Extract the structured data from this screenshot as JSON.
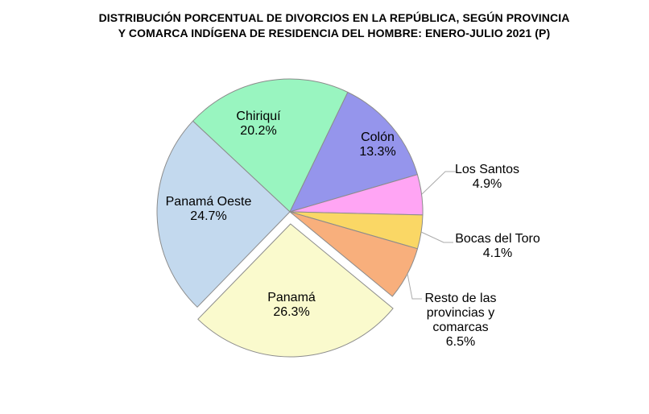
{
  "title": {
    "line1": "DISTRIBUCIÓN PORCENTUAL DE DIVORCIOS EN LA REPÚBLICA, SEGÚN PROVINCIA",
    "line2": "Y COMARCA INDÍGENA DE RESIDENCIA DEL HOMBRE: ENERO-JULIO 2021 (P)"
  },
  "chart_data": {
    "type": "pie",
    "title": "DISTRIBUCIÓN PORCENTUAL DE DIVORCIOS EN LA REPÚBLICA, SEGÚN PROVINCIA Y COMARCA INDÍGENA DE RESIDENCIA DEL HOMBRE: ENERO-JULIO 2021 (P)",
    "unit": "%",
    "total": 100,
    "start_angle_deg": 136.9,
    "direction": "clockwise",
    "legend": "none",
    "slices": [
      {
        "label": "Chiriquí",
        "value": 20.2,
        "pct_text": "20.2%",
        "color": "#99F5C0",
        "exploded": false,
        "label_placement": "inside"
      },
      {
        "label": "Colón",
        "value": 13.3,
        "pct_text": "13.3%",
        "color": "#9595EC",
        "exploded": false,
        "label_placement": "inside"
      },
      {
        "label": "Los Santos",
        "value": 4.9,
        "pct_text": "4.9%",
        "color": "#FFA5F4",
        "exploded": false,
        "label_placement": "outside"
      },
      {
        "label": "Bocas del Toro",
        "value": 4.1,
        "pct_text": "4.1%",
        "color": "#FAD765",
        "exploded": false,
        "label_placement": "outside"
      },
      {
        "label": "Resto de las provincias y comarcas",
        "value": 6.5,
        "pct_text": "6.5%",
        "color": "#F8AF7C",
        "exploded": false,
        "label_placement": "outside"
      },
      {
        "label": "Panamá",
        "value": 26.3,
        "pct_text": "26.3%",
        "color": "#FAFACD",
        "exploded": true,
        "label_placement": "inside"
      },
      {
        "label": "Panamá Oeste",
        "value": 24.7,
        "pct_text": "24.7%",
        "color": "#C3D9EE",
        "exploded": false,
        "label_placement": "inside"
      }
    ],
    "style": {
      "slice_border": "#8C8C8C",
      "leader_line": "#ABABAB",
      "text": "#000000",
      "background": "#FFFFFF"
    }
  }
}
